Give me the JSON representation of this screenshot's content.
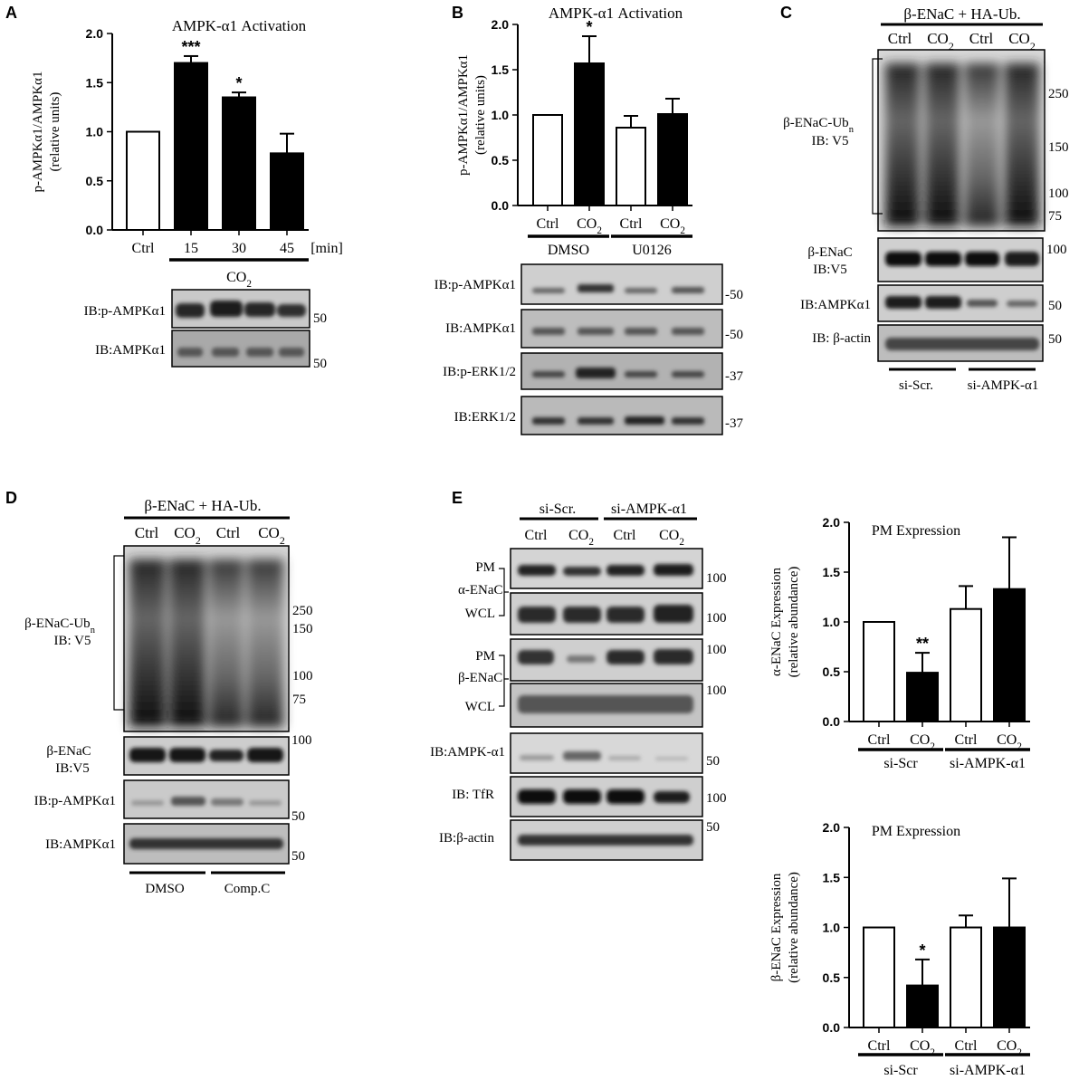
{
  "panel_labels": {
    "A": "A",
    "B": "B",
    "C": "C",
    "D": "D",
    "E": "E"
  },
  "chart_data": [
    {
      "id": "A",
      "type": "bar",
      "title": "AMPK-α1 Activation",
      "ylabel_lines": [
        "p-AMPKα1/AMPKα1",
        "(relative units)"
      ],
      "categories": [
        "Ctrl",
        "15",
        "30",
        "45"
      ],
      "values": [
        1.0,
        1.7,
        1.35,
        0.78
      ],
      "errors": [
        0,
        0.07,
        0.05,
        0.2
      ],
      "fills": [
        "#ffffff",
        "#000000",
        "#000000",
        "#000000"
      ],
      "significance": [
        "",
        "***",
        "*",
        ""
      ],
      "ylim": [
        0,
        2.0
      ],
      "yticks": [
        "0.0",
        "0.5",
        "1.0",
        "1.5",
        "2.0"
      ],
      "x_unit": "[min]",
      "groups": [
        {
          "label": "CO2",
          "from": 1,
          "to": 3
        }
      ]
    },
    {
      "id": "B",
      "type": "bar",
      "title": "AMPK-α1 Activation",
      "ylabel_lines": [
        "p-AMPKα1/AMPKα1",
        "(relative units)"
      ],
      "categories": [
        "Ctrl",
        "CO2",
        "Ctrl",
        "CO2"
      ],
      "values": [
        1.0,
        1.57,
        0.86,
        1.01
      ],
      "errors": [
        0,
        0.3,
        0.13,
        0.17
      ],
      "fills": [
        "#ffffff",
        "#000000",
        "#ffffff",
        "#000000"
      ],
      "significance": [
        "",
        "*",
        "",
        ""
      ],
      "ylim": [
        0,
        2.0
      ],
      "yticks": [
        "0.0",
        "0.5",
        "1.0",
        "1.5",
        "2.0"
      ],
      "groups": [
        {
          "label": "DMSO",
          "from": 0,
          "to": 1
        },
        {
          "label": "U0126",
          "from": 2,
          "to": 3
        }
      ]
    },
    {
      "id": "E1",
      "type": "bar",
      "title": "PM Expression",
      "ylabel_lines": [
        "α-ENaC Expression",
        "(relative abundance)"
      ],
      "categories": [
        "Ctrl",
        "CO2",
        "Ctrl",
        "CO2"
      ],
      "values": [
        1.0,
        0.49,
        1.13,
        1.33
      ],
      "errors": [
        0,
        0.2,
        0.23,
        0.52
      ],
      "fills": [
        "#ffffff",
        "#000000",
        "#ffffff",
        "#000000"
      ],
      "significance": [
        "",
        "**",
        "",
        ""
      ],
      "ylim": [
        0,
        2.0
      ],
      "yticks": [
        "0.0",
        "0.5",
        "1.0",
        "1.5",
        "2.0"
      ],
      "groups": [
        {
          "label": "si-Scr",
          "from": 0,
          "to": 1
        },
        {
          "label": "si-AMPK-α1",
          "from": 2,
          "to": 3
        }
      ]
    },
    {
      "id": "E2",
      "type": "bar",
      "title": "PM Expression",
      "ylabel_lines": [
        "β-ENaC Expression",
        "(relative abundance)"
      ],
      "categories": [
        "Ctrl",
        "CO2",
        "Ctrl",
        "CO2"
      ],
      "values": [
        1.0,
        0.42,
        1.0,
        1.0
      ],
      "errors": [
        0,
        0.26,
        0.12,
        0.49
      ],
      "fills": [
        "#ffffff",
        "#000000",
        "#ffffff",
        "#000000"
      ],
      "significance": [
        "",
        "*",
        "",
        ""
      ],
      "ylim": [
        0,
        2.0
      ],
      "yticks": [
        "0.0",
        "0.5",
        "1.0",
        "1.5",
        "2.0"
      ],
      "groups": [
        {
          "label": "si-Scr",
          "from": 0,
          "to": 1
        },
        {
          "label": "si-AMPK-α1",
          "from": 2,
          "to": 3
        }
      ]
    }
  ],
  "blots": {
    "A": {
      "rows": [
        {
          "label": "IB:p-AMPKα1",
          "marker": "50"
        },
        {
          "label": "IB:AMPKα1",
          "marker": "50"
        }
      ]
    },
    "B": {
      "rows": [
        {
          "label": "IB:p-AMPKα1",
          "marker": "-50"
        },
        {
          "label": "IB:AMPKα1",
          "marker": "-50"
        },
        {
          "label": "IB:p-ERK1/2",
          "marker": "-37"
        },
        {
          "label": "IB:ERK1/2",
          "marker": "-37"
        }
      ]
    },
    "C": {
      "header": "β-ENaC + HA-Ub.",
      "lanes": [
        "Ctrl",
        "CO2",
        "Ctrl",
        "CO2"
      ],
      "ub_label": [
        "β-ENaC-Ubn",
        "IB: V5"
      ],
      "ub_markers": [
        "250",
        "150",
        "100",
        "75"
      ],
      "rows": [
        {
          "label1": "β-ENaC",
          "label2": "IB:V5",
          "marker": "100"
        },
        {
          "label1": "IB:AMPKα1",
          "label2": "",
          "marker": "50"
        },
        {
          "label1": "IB: β-actin",
          "label2": "",
          "marker": "50"
        }
      ],
      "groups": [
        "si-Scr.",
        "si-AMPK-α1"
      ]
    },
    "D": {
      "header": "β-ENaC + HA-Ub.",
      "lanes": [
        "Ctrl",
        "CO2",
        "Ctrl",
        "CO2"
      ],
      "ub_label": [
        "β-ENaC-Ubn",
        "IB: V5"
      ],
      "ub_markers": [
        "250",
        "150",
        "100",
        "75"
      ],
      "rows": [
        {
          "label1": "β-ENaC",
          "label2": "IB:V5",
          "marker": "100"
        },
        {
          "label1": "IB:p-AMPKα1",
          "label2": "",
          "marker": "50"
        },
        {
          "label1": "IB:AMPKα1",
          "label2": "",
          "marker": "50"
        }
      ],
      "groups": [
        "DMSO",
        "Comp.C"
      ]
    },
    "E": {
      "groups": [
        "si-Scr.",
        "si-AMPK-α1"
      ],
      "lanes": [
        "Ctrl",
        "CO2",
        "Ctrl",
        "CO2"
      ],
      "rows": [
        {
          "label": "PM",
          "marker": "100"
        },
        {
          "label": "WCL",
          "marker": "100"
        },
        {
          "label": "PM",
          "marker": "100"
        },
        {
          "label": "WCL",
          "marker": "100"
        },
        {
          "label": "IB:AMPK-α1",
          "marker": "50"
        },
        {
          "label": "IB: TfR",
          "marker": "100"
        },
        {
          "label": "IB:β-actin",
          "marker": "50"
        }
      ],
      "pair_labels": [
        "α-ENaC",
        "β-ENaC"
      ]
    }
  }
}
